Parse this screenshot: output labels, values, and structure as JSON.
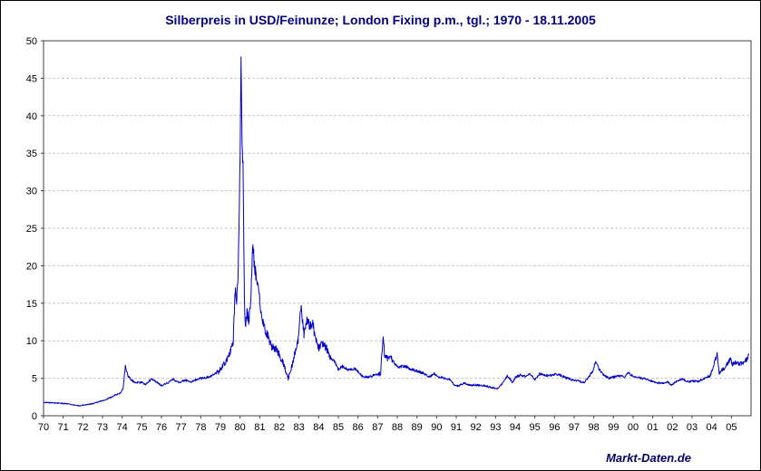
{
  "chart_data": {
    "type": "line",
    "title": "Silberpreis in USD/Feinunze; London Fixing p.m., tgl.; 1970 - 18.11.2005",
    "source": "Markt-Daten.de",
    "xlabel": "",
    "ylabel": "",
    "x_range": [
      1970,
      2006
    ],
    "y_range": [
      0,
      50
    ],
    "y_ticks": [
      0,
      5,
      10,
      15,
      20,
      25,
      30,
      35,
      40,
      45,
      50
    ],
    "x_tick_labels": [
      "70",
      "71",
      "72",
      "73",
      "74",
      "75",
      "76",
      "77",
      "78",
      "79",
      "80",
      "81",
      "82",
      "83",
      "84",
      "85",
      "86",
      "87",
      "88",
      "89",
      "90",
      "91",
      "92",
      "93",
      "94",
      "95",
      "96",
      "97",
      "98",
      "99",
      "00",
      "01",
      "02",
      "03",
      "04",
      "05"
    ],
    "x_tick_years": [
      1970,
      1971,
      1972,
      1973,
      1974,
      1975,
      1976,
      1977,
      1978,
      1979,
      1980,
      1981,
      1982,
      1983,
      1984,
      1985,
      1986,
      1987,
      1988,
      1989,
      1990,
      1991,
      1992,
      1993,
      1994,
      1995,
      1996,
      1997,
      1998,
      1999,
      2000,
      2001,
      2002,
      2003,
      2004,
      2005
    ],
    "grid": "horizontal-dashed",
    "legend": "none",
    "line_color": "#0000cc",
    "grid_color": "#c6c6c6",
    "title_color": "#000080",
    "series": [
      {
        "name": "Silberpreis London Fixing p.m. (USD/Feinunze)",
        "control_points": [
          [
            1970.0,
            1.8
          ],
          [
            1970.3,
            1.75
          ],
          [
            1970.6,
            1.7
          ],
          [
            1970.9,
            1.65
          ],
          [
            1971.2,
            1.6
          ],
          [
            1971.5,
            1.45
          ],
          [
            1971.85,
            1.32
          ],
          [
            1972.0,
            1.4
          ],
          [
            1972.4,
            1.55
          ],
          [
            1972.8,
            1.85
          ],
          [
            1973.0,
            2.0
          ],
          [
            1973.3,
            2.3
          ],
          [
            1973.6,
            2.7
          ],
          [
            1973.9,
            3.0
          ],
          [
            1974.05,
            3.6
          ],
          [
            1974.16,
            6.6
          ],
          [
            1974.3,
            5.3
          ],
          [
            1974.5,
            4.7
          ],
          [
            1974.7,
            4.4
          ],
          [
            1975.0,
            4.45
          ],
          [
            1975.2,
            4.15
          ],
          [
            1975.5,
            4.95
          ],
          [
            1975.8,
            4.4
          ],
          [
            1976.0,
            4.05
          ],
          [
            1976.3,
            4.35
          ],
          [
            1976.6,
            4.9
          ],
          [
            1976.9,
            4.4
          ],
          [
            1977.2,
            4.75
          ],
          [
            1977.5,
            4.5
          ],
          [
            1977.8,
            4.85
          ],
          [
            1978.0,
            4.95
          ],
          [
            1978.3,
            5.1
          ],
          [
            1978.6,
            5.4
          ],
          [
            1978.9,
            5.9
          ],
          [
            1979.1,
            6.5
          ],
          [
            1979.3,
            7.4
          ],
          [
            1979.5,
            8.6
          ],
          [
            1979.65,
            9.8
          ],
          [
            1979.75,
            16.8
          ],
          [
            1979.82,
            15.5
          ],
          [
            1979.9,
            18.5
          ],
          [
            1980.0,
            34.0
          ],
          [
            1980.05,
            48.7
          ],
          [
            1980.1,
            36.0
          ],
          [
            1980.15,
            33.0
          ],
          [
            1980.22,
            16.0
          ],
          [
            1980.27,
            12.0
          ],
          [
            1980.35,
            13.8
          ],
          [
            1980.45,
            12.8
          ],
          [
            1980.55,
            15.5
          ],
          [
            1980.65,
            22.8
          ],
          [
            1980.72,
            20.5
          ],
          [
            1980.8,
            19.0
          ],
          [
            1980.9,
            17.5
          ],
          [
            1981.0,
            15.3
          ],
          [
            1981.2,
            12.0
          ],
          [
            1981.4,
            10.8
          ],
          [
            1981.6,
            9.2
          ],
          [
            1981.8,
            9.0
          ],
          [
            1982.0,
            8.1
          ],
          [
            1982.2,
            7.0
          ],
          [
            1982.45,
            4.95
          ],
          [
            1982.6,
            6.2
          ],
          [
            1982.8,
            8.5
          ],
          [
            1982.95,
            10.2
          ],
          [
            1983.1,
            14.3
          ],
          [
            1983.25,
            11.0
          ],
          [
            1983.4,
            12.6
          ],
          [
            1983.55,
            11.9
          ],
          [
            1983.7,
            12.2
          ],
          [
            1983.85,
            10.0
          ],
          [
            1984.0,
            9.1
          ],
          [
            1984.2,
            9.6
          ],
          [
            1984.4,
            9.0
          ],
          [
            1984.6,
            7.6
          ],
          [
            1984.8,
            7.3
          ],
          [
            1985.0,
            6.2
          ],
          [
            1985.2,
            6.6
          ],
          [
            1985.5,
            6.1
          ],
          [
            1985.8,
            6.3
          ],
          [
            1986.0,
            5.9
          ],
          [
            1986.2,
            5.3
          ],
          [
            1986.5,
            5.1
          ],
          [
            1986.8,
            5.4
          ],
          [
            1987.0,
            5.5
          ],
          [
            1987.15,
            5.6
          ],
          [
            1987.28,
            10.9
          ],
          [
            1987.35,
            8.2
          ],
          [
            1987.5,
            7.6
          ],
          [
            1987.7,
            7.7
          ],
          [
            1987.9,
            6.8
          ],
          [
            1988.1,
            6.5
          ],
          [
            1988.4,
            6.6
          ],
          [
            1988.7,
            6.2
          ],
          [
            1989.0,
            5.95
          ],
          [
            1989.3,
            5.7
          ],
          [
            1989.6,
            5.2
          ],
          [
            1989.9,
            5.6
          ],
          [
            1990.1,
            5.2
          ],
          [
            1990.4,
            5.0
          ],
          [
            1990.7,
            4.8
          ],
          [
            1990.9,
            4.15
          ],
          [
            1991.1,
            3.95
          ],
          [
            1991.4,
            4.4
          ],
          [
            1991.7,
            4.05
          ],
          [
            1992.0,
            4.1
          ],
          [
            1992.3,
            4.05
          ],
          [
            1992.6,
            3.9
          ],
          [
            1992.9,
            3.7
          ],
          [
            1993.1,
            3.6
          ],
          [
            1993.35,
            4.3
          ],
          [
            1993.6,
            5.3
          ],
          [
            1993.75,
            4.9
          ],
          [
            1993.85,
            4.4
          ],
          [
            1994.0,
            5.1
          ],
          [
            1994.25,
            5.4
          ],
          [
            1994.5,
            5.25
          ],
          [
            1994.75,
            5.55
          ],
          [
            1995.0,
            4.8
          ],
          [
            1995.25,
            5.6
          ],
          [
            1995.5,
            5.4
          ],
          [
            1995.75,
            5.3
          ],
          [
            1996.0,
            5.55
          ],
          [
            1996.3,
            5.4
          ],
          [
            1996.6,
            5.05
          ],
          [
            1996.9,
            4.8
          ],
          [
            1997.2,
            4.7
          ],
          [
            1997.5,
            4.35
          ],
          [
            1997.75,
            5.2
          ],
          [
            1997.95,
            6.0
          ],
          [
            1998.1,
            7.25
          ],
          [
            1998.25,
            6.3
          ],
          [
            1998.5,
            5.45
          ],
          [
            1998.75,
            5.0
          ],
          [
            1999.0,
            5.15
          ],
          [
            1999.3,
            5.3
          ],
          [
            1999.6,
            5.25
          ],
          [
            1999.75,
            5.7
          ],
          [
            2000.0,
            5.3
          ],
          [
            2000.3,
            5.05
          ],
          [
            2000.6,
            4.95
          ],
          [
            2000.9,
            4.7
          ],
          [
            2001.2,
            4.4
          ],
          [
            2001.5,
            4.3
          ],
          [
            2001.75,
            4.55
          ],
          [
            2001.95,
            4.05
          ],
          [
            2002.2,
            4.6
          ],
          [
            2002.5,
            4.9
          ],
          [
            2002.75,
            4.55
          ],
          [
            2003.0,
            4.65
          ],
          [
            2003.3,
            4.55
          ],
          [
            2003.6,
            4.95
          ],
          [
            2003.9,
            5.3
          ],
          [
            2004.05,
            6.2
          ],
          [
            2004.15,
            7.2
          ],
          [
            2004.28,
            8.2
          ],
          [
            2004.38,
            5.7
          ],
          [
            2004.55,
            6.1
          ],
          [
            2004.75,
            6.7
          ],
          [
            2004.95,
            7.6
          ],
          [
            2005.05,
            6.8
          ],
          [
            2005.2,
            7.1
          ],
          [
            2005.35,
            7.0
          ],
          [
            2005.5,
            6.95
          ],
          [
            2005.65,
            7.1
          ],
          [
            2005.78,
            7.55
          ],
          [
            2005.88,
            8.0
          ]
        ]
      }
    ]
  }
}
